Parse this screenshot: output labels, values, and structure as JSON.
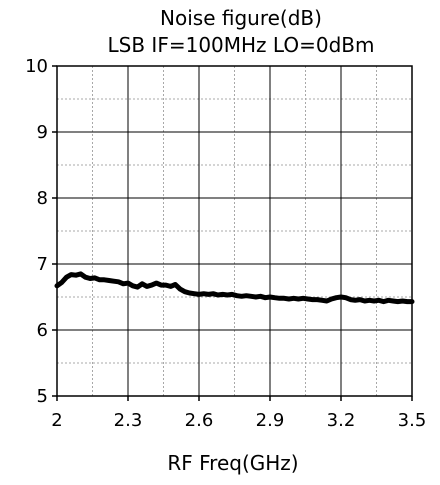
{
  "chart_data": {
    "type": "line",
    "title": "Noise figure(dB)",
    "subtitle": "LSB IF=100MHz LO=0dBm",
    "xlabel": "RF Freq(GHz)",
    "ylabel": "",
    "xlim": [
      2,
      3.5
    ],
    "ylim": [
      5,
      10
    ],
    "x_ticks": [
      2,
      2.3,
      2.6,
      2.9,
      3.2,
      3.5
    ],
    "x_tick_labels": [
      "2",
      "2.3",
      "2.6",
      "2.9",
      "3.2",
      "3.5"
    ],
    "y_ticks": [
      5,
      6,
      7,
      8,
      9,
      10
    ],
    "y_tick_labels": [
      "5",
      "6",
      "7",
      "8",
      "9",
      "10"
    ],
    "x_minor_grid": [
      2.15,
      2.45,
      2.75,
      3.05,
      3.35
    ],
    "y_minor_grid": [
      5.5,
      6.5,
      7.5,
      8.5,
      9.5
    ],
    "grid": true,
    "line_color": "#000000",
    "series": [
      {
        "x": [
          2.0,
          2.02,
          2.04,
          2.06,
          2.08,
          2.1,
          2.12,
          2.14,
          2.16,
          2.18,
          2.2,
          2.22,
          2.24,
          2.26,
          2.28,
          2.3,
          2.32,
          2.34,
          2.36,
          2.38,
          2.4,
          2.42,
          2.44,
          2.46,
          2.48,
          2.5,
          2.52,
          2.54,
          2.56,
          2.58,
          2.6,
          2.62,
          2.64,
          2.66,
          2.68,
          2.7,
          2.72,
          2.74,
          2.76,
          2.78,
          2.8,
          2.82,
          2.84,
          2.86,
          2.88,
          2.9,
          2.92,
          2.94,
          2.96,
          2.98,
          3.0,
          3.02,
          3.04,
          3.06,
          3.08,
          3.1,
          3.12,
          3.14,
          3.16,
          3.18,
          3.2,
          3.22,
          3.24,
          3.26,
          3.28,
          3.3,
          3.32,
          3.34,
          3.36,
          3.38,
          3.4,
          3.42,
          3.44,
          3.46,
          3.48,
          3.5
        ],
        "values": [
          6.67,
          6.72,
          6.8,
          6.84,
          6.83,
          6.85,
          6.8,
          6.78,
          6.79,
          6.76,
          6.76,
          6.75,
          6.74,
          6.73,
          6.7,
          6.71,
          6.67,
          6.65,
          6.7,
          6.66,
          6.68,
          6.71,
          6.68,
          6.68,
          6.66,
          6.69,
          6.62,
          6.58,
          6.56,
          6.55,
          6.54,
          6.55,
          6.54,
          6.55,
          6.53,
          6.54,
          6.53,
          6.54,
          6.52,
          6.51,
          6.52,
          6.51,
          6.5,
          6.51,
          6.49,
          6.5,
          6.49,
          6.48,
          6.48,
          6.47,
          6.48,
          6.47,
          6.48,
          6.47,
          6.46,
          6.46,
          6.45,
          6.44,
          6.47,
          6.49,
          6.5,
          6.49,
          6.46,
          6.45,
          6.46,
          6.44,
          6.45,
          6.44,
          6.45,
          6.43,
          6.45,
          6.44,
          6.43,
          6.44,
          6.43,
          6.43
        ]
      }
    ]
  }
}
